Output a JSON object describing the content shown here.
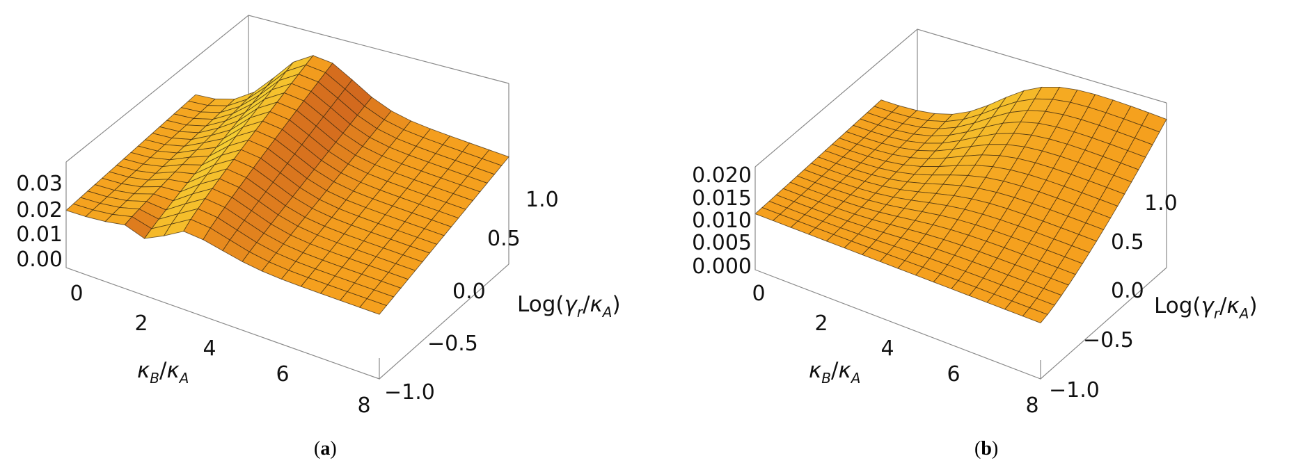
{
  "chart_data": [
    {
      "type": "surface",
      "panel_label": "a",
      "xlabel_sym": {
        "a": "κ",
        "asub": "B",
        "b": "κ",
        "bsub": "A"
      },
      "ylabel_sym": {
        "pre": "Log(",
        "a": "γ",
        "asub": "r",
        "b": "κ",
        "bsub": "A",
        "post": ")"
      },
      "x_ticks": [
        "0",
        "2",
        "4",
        "6",
        "8"
      ],
      "y_ticks": [
        "−1.0",
        "−0.5",
        "0.0",
        "0.5",
        "1.0"
      ],
      "z_ticks": [
        "0.00",
        "0.01",
        "0.02",
        "0.03"
      ],
      "xlim": [
        0,
        8
      ],
      "ylim": [
        -1.2,
        1.2
      ],
      "zlim": [
        -0.002,
        0.032
      ],
      "surface_color": "#f5a020"
    },
    {
      "type": "surface",
      "panel_label": "b",
      "xlabel_sym": {
        "a": "κ",
        "asub": "B",
        "b": "κ",
        "bsub": "A"
      },
      "ylabel_sym": {
        "pre": "Log(",
        "a": "γ",
        "asub": "r",
        "b": "κ",
        "bsub": "A",
        "post": ")"
      },
      "x_ticks": [
        "0",
        "2",
        "4",
        "6",
        "8"
      ],
      "y_ticks": [
        "−1.0",
        "−0.5",
        "0.0",
        "0.5",
        "1.0"
      ],
      "z_ticks": [
        "0.000",
        "0.005",
        "0.010",
        "0.015",
        "0.020"
      ],
      "xlim": [
        0,
        8
      ],
      "ylim": [
        -1.2,
        1.2
      ],
      "zlim": [
        -0.001,
        0.021
      ],
      "surface_color": "#f5a020"
    }
  ]
}
